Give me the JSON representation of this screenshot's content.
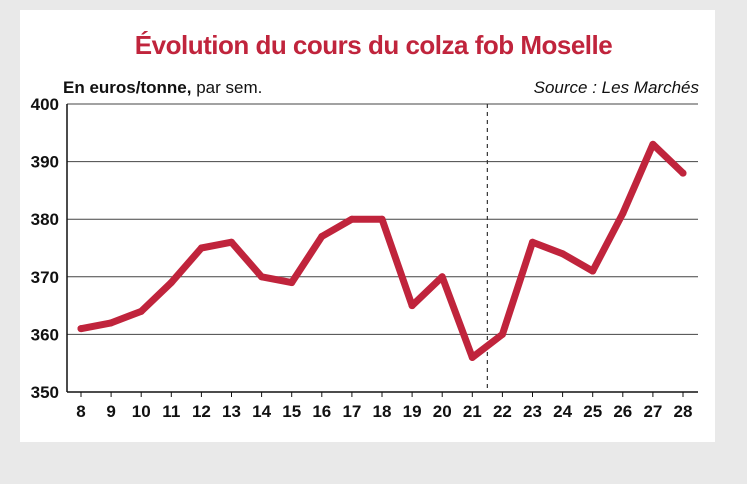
{
  "chart_data": {
    "type": "line",
    "title": "Évolution du cours du colza fob Moselle",
    "unit_label_bold": "En euros/tonne,",
    "unit_label_rest": " par sem.",
    "source": "Source : Les Marchés",
    "xlabel": "",
    "ylabel": "",
    "x": [
      8,
      9,
      10,
      11,
      12,
      13,
      14,
      15,
      16,
      17,
      18,
      19,
      20,
      21,
      22,
      23,
      24,
      25,
      26,
      27,
      28
    ],
    "series": [
      {
        "values": [
          361,
          362,
          364,
          369,
          375,
          376,
          370,
          369,
          377,
          380,
          380,
          365,
          370,
          356,
          360,
          376,
          374,
          371,
          381,
          393,
          388
        ]
      }
    ],
    "ylim": [
      350,
      400
    ],
    "yticks": [
      350,
      360,
      370,
      380,
      390,
      400
    ],
    "divider_after_week": 21,
    "grid": true,
    "line_color": "#c0243c"
  }
}
